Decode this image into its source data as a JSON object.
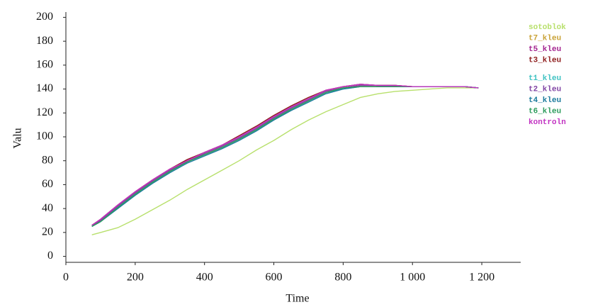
{
  "chart_data": {
    "type": "line",
    "xlabel": "Time",
    "ylabel": "Valu",
    "x": [
      75,
      100,
      150,
      200,
      250,
      300,
      350,
      400,
      450,
      500,
      550,
      600,
      650,
      700,
      750,
      800,
      850,
      900,
      950,
      1000,
      1050,
      1100,
      1150,
      1190
    ],
    "xlim": [
      0,
      1300
    ],
    "ylim": [
      -5,
      205
    ],
    "xticks": [
      0,
      200,
      400,
      600,
      800,
      {
        "value": 1000,
        "label": "1 000"
      },
      {
        "value": 1200,
        "label": "1 200"
      }
    ],
    "yticks": [
      0,
      20,
      40,
      60,
      80,
      100,
      120,
      140,
      160,
      180,
      200
    ],
    "grid": false,
    "legend": "right",
    "series": [
      {
        "name": "sotoblok",
        "color": "#b8e06c",
        "values": [
          18,
          20,
          24,
          31,
          39,
          47,
          56,
          64,
          72,
          80,
          89,
          97,
          106,
          114,
          121,
          127,
          133,
          136,
          138,
          139,
          140,
          141,
          141,
          141
        ]
      },
      {
        "name": "t7_kleu",
        "color": "#c9a236",
        "values": [
          26,
          30,
          42,
          53,
          63,
          72,
          80,
          86,
          92,
          99,
          107,
          116,
          124,
          131,
          138,
          141,
          143,
          143,
          143,
          142,
          142,
          142,
          142,
          141
        ]
      },
      {
        "name": "t5_kleu",
        "color": "#a3238f",
        "values": [
          26,
          31,
          43,
          54,
          64,
          73,
          80,
          87,
          93,
          100,
          108,
          117,
          125,
          132,
          139,
          142,
          144,
          143,
          143,
          142,
          142,
          142,
          142,
          141
        ]
      },
      {
        "name": "t3_kleu",
        "color": "#8e1c1c",
        "values": [
          26,
          31,
          43,
          54,
          64,
          73,
          81,
          87,
          93,
          101,
          109,
          118,
          126,
          133,
          139,
          142,
          144,
          143,
          143,
          142,
          142,
          142,
          142,
          141
        ]
      },
      {
        "name": "t1_kleu",
        "color": "#3fc2c2",
        "values": [
          25,
          29,
          41,
          52,
          62,
          71,
          79,
          85,
          91,
          98,
          106,
          115,
          123,
          130,
          137,
          140,
          142,
          142,
          142,
          142,
          142,
          142,
          142,
          141
        ]
      },
      {
        "name": "t2_kleu",
        "color": "#8044a4",
        "values": [
          25,
          30,
          42,
          53,
          63,
          72,
          79,
          86,
          92,
          99,
          107,
          116,
          124,
          131,
          138,
          141,
          143,
          143,
          142,
          142,
          142,
          142,
          142,
          141
        ]
      },
      {
        "name": "t4_kleu",
        "color": "#1b7a9c",
        "values": [
          25,
          29,
          40,
          51,
          61,
          70,
          78,
          84,
          90,
          97,
          105,
          114,
          122,
          129,
          136,
          140,
          142,
          142,
          142,
          142,
          142,
          142,
          142,
          141
        ]
      },
      {
        "name": "t6_kleu",
        "color": "#2c9c5c",
        "values": [
          25,
          29,
          41,
          52,
          62,
          71,
          79,
          85,
          91,
          98,
          106,
          115,
          123,
          130,
          137,
          141,
          142,
          142,
          142,
          142,
          142,
          142,
          142,
          141
        ]
      },
      {
        "name": "kontroln",
        "color": "#c233c2",
        "values": [
          26,
          31,
          43,
          54,
          64,
          73,
          80,
          87,
          93,
          100,
          108,
          117,
          125,
          132,
          139,
          142,
          144,
          143,
          143,
          142,
          142,
          142,
          142,
          141
        ]
      }
    ]
  }
}
